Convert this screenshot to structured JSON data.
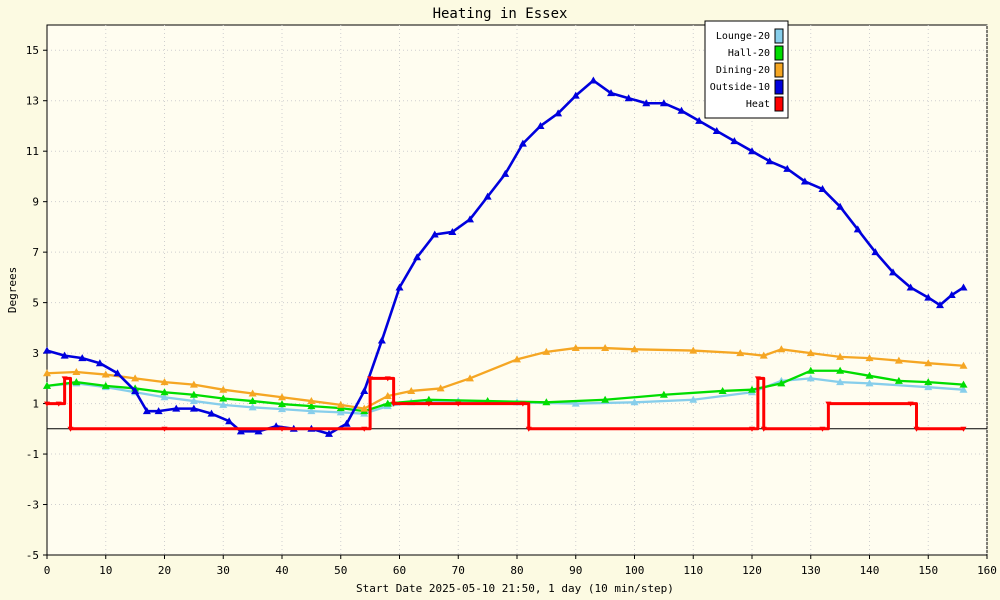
{
  "chart_data": {
    "type": "line",
    "title": "Heating in Essex",
    "xlabel": "Start Date 2025-05-10 21:50, 1 day (10 min/step)",
    "ylabel": "Degrees",
    "xlim": [
      0,
      160
    ],
    "ylim": [
      -5,
      16
    ],
    "x_ticks": [
      0,
      10,
      20,
      30,
      40,
      50,
      60,
      70,
      80,
      90,
      100,
      110,
      120,
      130,
      140,
      150,
      160
    ],
    "y_ticks": [
      -5,
      -3,
      -1,
      1,
      3,
      5,
      7,
      9,
      11,
      13,
      15
    ],
    "grid": true,
    "legend_position": "top-right",
    "series": [
      {
        "name": "Lounge-20",
        "color": "#87ceeb",
        "points": [
          [
            0,
            1.7
          ],
          [
            5,
            1.8
          ],
          [
            10,
            1.65
          ],
          [
            15,
            1.45
          ],
          [
            20,
            1.25
          ],
          [
            25,
            1.1
          ],
          [
            30,
            0.95
          ],
          [
            35,
            0.85
          ],
          [
            40,
            0.78
          ],
          [
            45,
            0.7
          ],
          [
            50,
            0.65
          ],
          [
            54,
            0.6
          ],
          [
            58,
            0.9
          ],
          [
            62,
            1.05
          ],
          [
            70,
            1.1
          ],
          [
            80,
            1.05
          ],
          [
            90,
            1.0
          ],
          [
            100,
            1.05
          ],
          [
            110,
            1.15
          ],
          [
            120,
            1.45
          ],
          [
            125,
            1.9
          ],
          [
            130,
            2.0
          ],
          [
            135,
            1.85
          ],
          [
            140,
            1.8
          ],
          [
            150,
            1.65
          ],
          [
            156,
            1.55
          ]
        ]
      },
      {
        "name": "Hall-20",
        "color": "#00dd00",
        "points": [
          [
            0,
            1.7
          ],
          [
            5,
            1.85
          ],
          [
            10,
            1.7
          ],
          [
            15,
            1.6
          ],
          [
            20,
            1.45
          ],
          [
            25,
            1.35
          ],
          [
            30,
            1.2
          ],
          [
            35,
            1.1
          ],
          [
            40,
            0.98
          ],
          [
            45,
            0.9
          ],
          [
            50,
            0.82
          ],
          [
            54,
            0.7
          ],
          [
            58,
            1.0
          ],
          [
            65,
            1.15
          ],
          [
            75,
            1.1
          ],
          [
            85,
            1.05
          ],
          [
            95,
            1.15
          ],
          [
            105,
            1.35
          ],
          [
            115,
            1.5
          ],
          [
            120,
            1.55
          ],
          [
            125,
            1.8
          ],
          [
            130,
            2.3
          ],
          [
            135,
            2.3
          ],
          [
            140,
            2.1
          ],
          [
            145,
            1.9
          ],
          [
            150,
            1.85
          ],
          [
            156,
            1.75
          ]
        ]
      },
      {
        "name": "Dining-20",
        "color": "#f5a623",
        "points": [
          [
            0,
            2.2
          ],
          [
            5,
            2.25
          ],
          [
            10,
            2.15
          ],
          [
            15,
            2.0
          ],
          [
            20,
            1.85
          ],
          [
            25,
            1.75
          ],
          [
            30,
            1.55
          ],
          [
            35,
            1.4
          ],
          [
            40,
            1.25
          ],
          [
            45,
            1.1
          ],
          [
            50,
            0.95
          ],
          [
            54,
            0.8
          ],
          [
            58,
            1.3
          ],
          [
            62,
            1.5
          ],
          [
            67,
            1.6
          ],
          [
            72,
            2.0
          ],
          [
            80,
            2.75
          ],
          [
            85,
            3.05
          ],
          [
            90,
            3.2
          ],
          [
            95,
            3.2
          ],
          [
            100,
            3.15
          ],
          [
            110,
            3.1
          ],
          [
            118,
            3.0
          ],
          [
            122,
            2.9
          ],
          [
            125,
            3.15
          ],
          [
            130,
            3.0
          ],
          [
            135,
            2.85
          ],
          [
            140,
            2.8
          ],
          [
            145,
            2.7
          ],
          [
            150,
            2.6
          ],
          [
            156,
            2.5
          ]
        ]
      },
      {
        "name": "Outside-10",
        "color": "#0000dd",
        "points": [
          [
            0,
            3.1
          ],
          [
            3,
            2.9
          ],
          [
            6,
            2.8
          ],
          [
            9,
            2.6
          ],
          [
            12,
            2.2
          ],
          [
            15,
            1.5
          ],
          [
            17,
            0.7
          ],
          [
            19,
            0.7
          ],
          [
            22,
            0.8
          ],
          [
            25,
            0.8
          ],
          [
            28,
            0.6
          ],
          [
            31,
            0.3
          ],
          [
            33,
            -0.1
          ],
          [
            36,
            -0.1
          ],
          [
            39,
            0.1
          ],
          [
            42,
            0.0
          ],
          [
            45,
            0.0
          ],
          [
            48,
            -0.2
          ],
          [
            51,
            0.2
          ],
          [
            54,
            1.5
          ],
          [
            57,
            3.5
          ],
          [
            60,
            5.6
          ],
          [
            63,
            6.8
          ],
          [
            66,
            7.7
          ],
          [
            69,
            7.8
          ],
          [
            72,
            8.3
          ],
          [
            75,
            9.2
          ],
          [
            78,
            10.1
          ],
          [
            81,
            11.3
          ],
          [
            84,
            12.0
          ],
          [
            87,
            12.5
          ],
          [
            90,
            13.2
          ],
          [
            93,
            13.8
          ],
          [
            96,
            13.3
          ],
          [
            99,
            13.1
          ],
          [
            102,
            12.9
          ],
          [
            105,
            12.9
          ],
          [
            108,
            12.6
          ],
          [
            111,
            12.2
          ],
          [
            114,
            11.8
          ],
          [
            117,
            11.4
          ],
          [
            120,
            11.0
          ],
          [
            123,
            10.6
          ],
          [
            126,
            10.3
          ],
          [
            129,
            9.8
          ],
          [
            132,
            9.5
          ],
          [
            135,
            8.8
          ],
          [
            138,
            7.9
          ],
          [
            141,
            7.0
          ],
          [
            144,
            6.2
          ],
          [
            147,
            5.6
          ],
          [
            150,
            5.2
          ],
          [
            152,
            4.9
          ],
          [
            154,
            5.3
          ],
          [
            156,
            5.6
          ]
        ]
      },
      {
        "name": "Heat",
        "color": "#ff0000",
        "points": [
          [
            0,
            1
          ],
          [
            2,
            1
          ],
          [
            3,
            2
          ],
          [
            4,
            0
          ],
          [
            20,
            0
          ],
          [
            40,
            0
          ],
          [
            54,
            0
          ],
          [
            55,
            2
          ],
          [
            58,
            2
          ],
          [
            59,
            1
          ],
          [
            65,
            1
          ],
          [
            70,
            1
          ],
          [
            81,
            1
          ],
          [
            82,
            0
          ],
          [
            120,
            0
          ],
          [
            121,
            2
          ],
          [
            122,
            0
          ],
          [
            132,
            0
          ],
          [
            133,
            1
          ],
          [
            147,
            1
          ],
          [
            148,
            0
          ],
          [
            156,
            0
          ]
        ]
      }
    ]
  }
}
